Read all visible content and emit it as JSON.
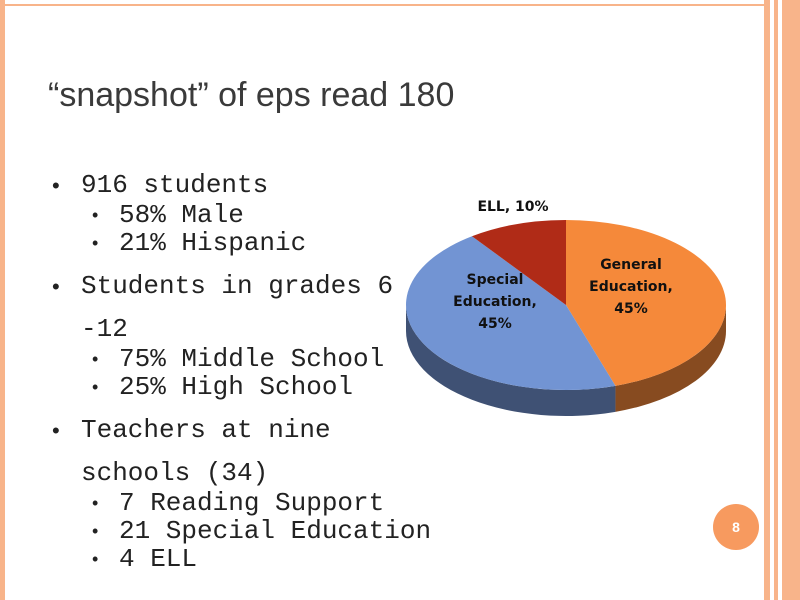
{
  "title": "“snapshot” of eps read 180",
  "bullets": [
    {
      "text": "916 students",
      "sub": [
        "58% Male",
        "21% Hispanic"
      ]
    },
    {
      "text": "Students in grades 6 -12",
      "sub": [
        "75% Middle School",
        "25% High School"
      ]
    },
    {
      "text": "Teachers at nine schools (34)",
      "sub": [
        "7 Reading Support",
        "21 Special Education",
        "4 ELL"
      ]
    }
  ],
  "slide_number": "8",
  "chart_data": {
    "type": "pie3d",
    "values": [
      45,
      45,
      10
    ],
    "value_labels": [
      "General Education, 45%",
      "Special Education, 45%",
      "ELL, 10%"
    ],
    "colors": [
      "#f5893a",
      "#7294d3",
      "#b02b17"
    ]
  }
}
